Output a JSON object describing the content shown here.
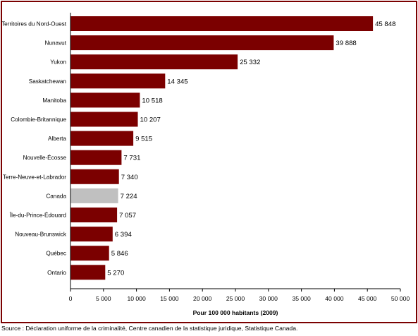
{
  "chart_data": {
    "type": "bar",
    "orientation": "horizontal",
    "categories": [
      "Territoires du Nord-Ouest",
      "Nunavut",
      "Yukon",
      "Saskatchewan",
      "Manitoba",
      "Colombie-Britannique",
      "Alberta",
      "Nouvelle-Écosse",
      "Terre-Neuve-et-Labrador",
      "Canada",
      "Île-du-Prince-Édouard",
      "Nouveau-Brunswick",
      "Québec",
      "Ontario"
    ],
    "values": [
      45848,
      39888,
      25332,
      14345,
      10518,
      10207,
      9515,
      7731,
      7340,
      7224,
      7057,
      6394,
      5846,
      5270
    ],
    "value_labels": [
      "45 848",
      "39 888",
      "25 332",
      "14 345",
      "10 518",
      "10 207",
      "9 515",
      "7 731",
      "7 340",
      "7 224",
      "7 057",
      "6 394",
      "5 846",
      "5 270"
    ],
    "xlim": [
      0,
      50000
    ],
    "xticks": [
      0,
      5000,
      10000,
      15000,
      20000,
      25000,
      30000,
      35000,
      40000,
      45000,
      50000
    ],
    "xtick_labels": [
      "0",
      "5 000",
      "10 000",
      "15 000",
      "20 000",
      "25 000",
      "30 000",
      "35 000",
      "40 000",
      "45 000",
      "50 000"
    ],
    "xlabel": "Pour 100 000 habitants (2009)",
    "grid": false,
    "colors": {
      "bar": "#7b0000",
      "highlight": "#c0c0c0",
      "border": "#7b0000"
    },
    "highlight_category": "Canada"
  },
  "source": "Source : Déclaration uniforme de la criminalité, Centre canadien de la statistique juridique, Statistique Canada."
}
